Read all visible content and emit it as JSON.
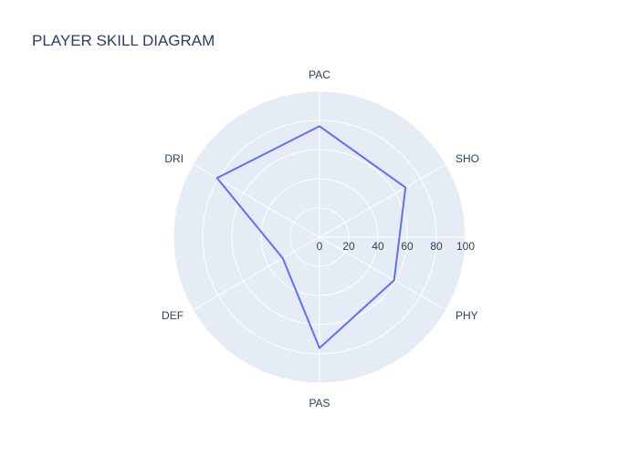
{
  "chart_data": {
    "type": "radar",
    "title": "PLAYER SKILL DIAGRAM",
    "categories": [
      "PAC",
      "SHO",
      "PHY",
      "PAS",
      "DEF",
      "DRI"
    ],
    "series": [
      {
        "values": [
          76,
          68,
          59,
          76,
          29,
          81
        ]
      }
    ],
    "radial_range": [
      0,
      100
    ],
    "radial_ticks": [
      0,
      20,
      40,
      60,
      80,
      100
    ],
    "grid": true,
    "colors": {
      "background": "#e5ecf6",
      "grid": "#ffffff",
      "line": "#636efa",
      "text": "#2a3f5f"
    }
  }
}
